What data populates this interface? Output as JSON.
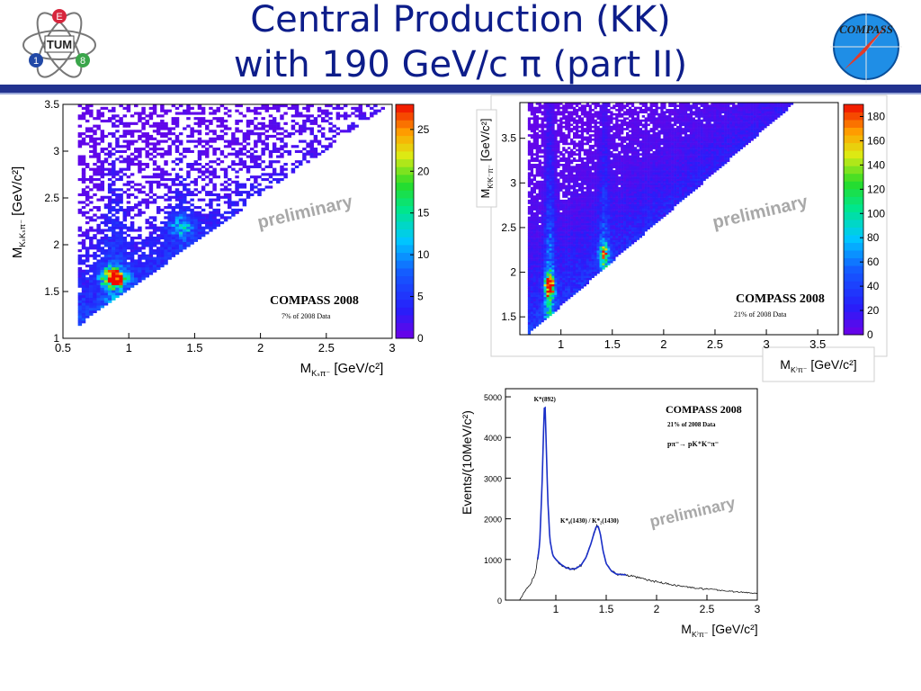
{
  "slide": {
    "title_line1": "Central Production (KK)",
    "title_line2": "with 190 GeV/c π  (part II)"
  },
  "logos": {
    "left": {
      "letters": [
        "E",
        "TUM",
        "1",
        "8"
      ],
      "icon": "tum-e18-logo"
    },
    "right": {
      "text": "COMPASS",
      "icon": "compass-logo"
    }
  },
  "colors": {
    "title": "#0d1d8a",
    "rule": "#22328f",
    "fit": "#1a2fc8",
    "data": "#111111"
  },
  "chart_data": [
    {
      "type": "heatmap",
      "xlabel": "M_{KsΠ-} [GeV/c²]",
      "ylabel": "M_{KsKsπ-} [GeV/c²]",
      "xlim": [
        0.5,
        3.0
      ],
      "ylim": [
        1.0,
        3.5
      ],
      "xticks": [
        "0.5",
        "1",
        "1.5",
        "2",
        "2.5",
        "3"
      ],
      "yticks": [
        "1",
        "1.5",
        "2",
        "2.5",
        "3",
        "3.5"
      ],
      "zlim": [
        0,
        28
      ],
      "zticks": [
        "0",
        "5",
        "10",
        "15",
        "20",
        "25"
      ],
      "peaks": [
        {
          "x": 0.89,
          "y": 1.65,
          "z": 26
        },
        {
          "x": 1.4,
          "y": 2.2,
          "z": 9
        }
      ],
      "annotations": {
        "experiment": "COMPASS 2008",
        "fraction": "7% of 2008 Data",
        "watermark": "preliminary"
      }
    },
    {
      "type": "heatmap",
      "xlabel": "M_{K*π-} [GeV/c²]",
      "ylabel": "M_{K*K-π-} [GeV/c²]",
      "xlim": [
        0.6,
        3.7
      ],
      "ylim": [
        1.3,
        3.9
      ],
      "xticks": [
        "1",
        "1.5",
        "2",
        "2.5",
        "3",
        "3.5"
      ],
      "yticks": [
        "1.5",
        "2",
        "2.5",
        "3",
        "3.5"
      ],
      "zlim": [
        0,
        190
      ],
      "zticks": [
        "0",
        "20",
        "40",
        "60",
        "80",
        "100",
        "120",
        "140",
        "160",
        "180"
      ],
      "peaks": [
        {
          "x": 0.89,
          "y": 1.85,
          "z": 185
        },
        {
          "x": 1.42,
          "y": 2.2,
          "z": 100
        }
      ],
      "annotations": {
        "experiment": "COMPASS 2008",
        "fraction": "21% of 2008 Data",
        "watermark": "preliminary"
      }
    },
    {
      "type": "line",
      "xlabel": "M_{K*π-} [GeV/c²]",
      "ylabel": "Events/(10MeV/c²)",
      "xlim": [
        0.5,
        3.0
      ],
      "ylim": [
        0,
        5200
      ],
      "xticks": [
        "1",
        "1.5",
        "2",
        "2.5",
        "3"
      ],
      "yticks": [
        "0",
        "1000",
        "2000",
        "3000",
        "4000",
        "5000"
      ],
      "series": [
        {
          "x": [
            0.64,
            0.7,
            0.75,
            0.8,
            0.84,
            0.86,
            0.88,
            0.89,
            0.9,
            0.92,
            0.94,
            0.97,
            1.0,
            1.05,
            1.1,
            1.15,
            1.2,
            1.25,
            1.3,
            1.35,
            1.38,
            1.4,
            1.42,
            1.44,
            1.47,
            1.5,
            1.55,
            1.6,
            1.65,
            1.7,
            1.8,
            1.9,
            2.0,
            2.2,
            2.4,
            2.6,
            2.8,
            3.0
          ],
          "y": [
            0,
            250,
            400,
            700,
            1400,
            2600,
            4300,
            5000,
            4200,
            2500,
            1500,
            1100,
            1000,
            880,
            800,
            760,
            780,
            860,
            1050,
            1400,
            1650,
            1800,
            1820,
            1650,
            1200,
            900,
            720,
            640,
            630,
            620,
            560,
            500,
            450,
            360,
            290,
            250,
            200,
            170
          ]
        }
      ],
      "fit": {
        "x": [
          0.82,
          0.84,
          0.86,
          0.88,
          0.89,
          0.9,
          0.92,
          0.94,
          0.97,
          1.0,
          1.05,
          1.1,
          1.15,
          1.2,
          1.25,
          1.3,
          1.35,
          1.38,
          1.4,
          1.42,
          1.44,
          1.47,
          1.5,
          1.55,
          1.6,
          1.65,
          1.7
        ],
        "y": [
          1000,
          1400,
          2600,
          4300,
          5000,
          4200,
          2500,
          1500,
          1100,
          1000,
          880,
          800,
          760,
          780,
          860,
          1050,
          1400,
          1650,
          1800,
          1820,
          1650,
          1200,
          900,
          720,
          640,
          630,
          620
        ]
      },
      "annotations": {
        "peak1": "K*(892)",
        "peak2": "K*₀(1430) / K*₂(1430)",
        "experiment": "COMPASS 2008",
        "fraction": "21% of 2008 Data",
        "reaction": "pπ⁻→ pK⁺K⁻π⁻",
        "watermark": "preliminary"
      }
    }
  ]
}
